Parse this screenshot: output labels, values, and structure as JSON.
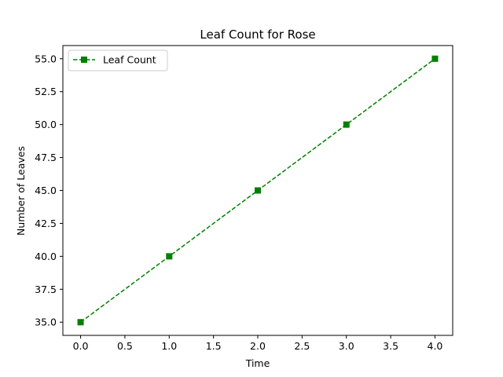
{
  "chart_data": {
    "type": "line",
    "title": "Leaf Count for Rose",
    "xlabel": "Time",
    "ylabel": "Number of Leaves",
    "x": [
      0,
      1,
      2,
      3,
      4
    ],
    "series": [
      {
        "name": "Leaf Count",
        "values": [
          35,
          40,
          45,
          50,
          55
        ],
        "color": "#008000",
        "line_style": "dashed",
        "marker": "square"
      }
    ],
    "xlim": [
      -0.2,
      4.2
    ],
    "ylim": [
      34.0,
      56.0
    ],
    "xticks": [
      0.0,
      0.5,
      1.0,
      1.5,
      2.0,
      2.5,
      3.0,
      3.5,
      4.0
    ],
    "xtick_labels": [
      "0.0",
      "0.5",
      "1.0",
      "1.5",
      "2.0",
      "2.5",
      "3.0",
      "3.5",
      "4.0"
    ],
    "yticks": [
      35.0,
      37.5,
      40.0,
      42.5,
      45.0,
      47.5,
      50.0,
      52.5,
      55.0
    ],
    "ytick_labels": [
      "35.0",
      "37.5",
      "40.0",
      "42.5",
      "45.0",
      "47.5",
      "50.0",
      "52.5",
      "55.0"
    ],
    "grid": false,
    "legend_position": "top-left"
  }
}
